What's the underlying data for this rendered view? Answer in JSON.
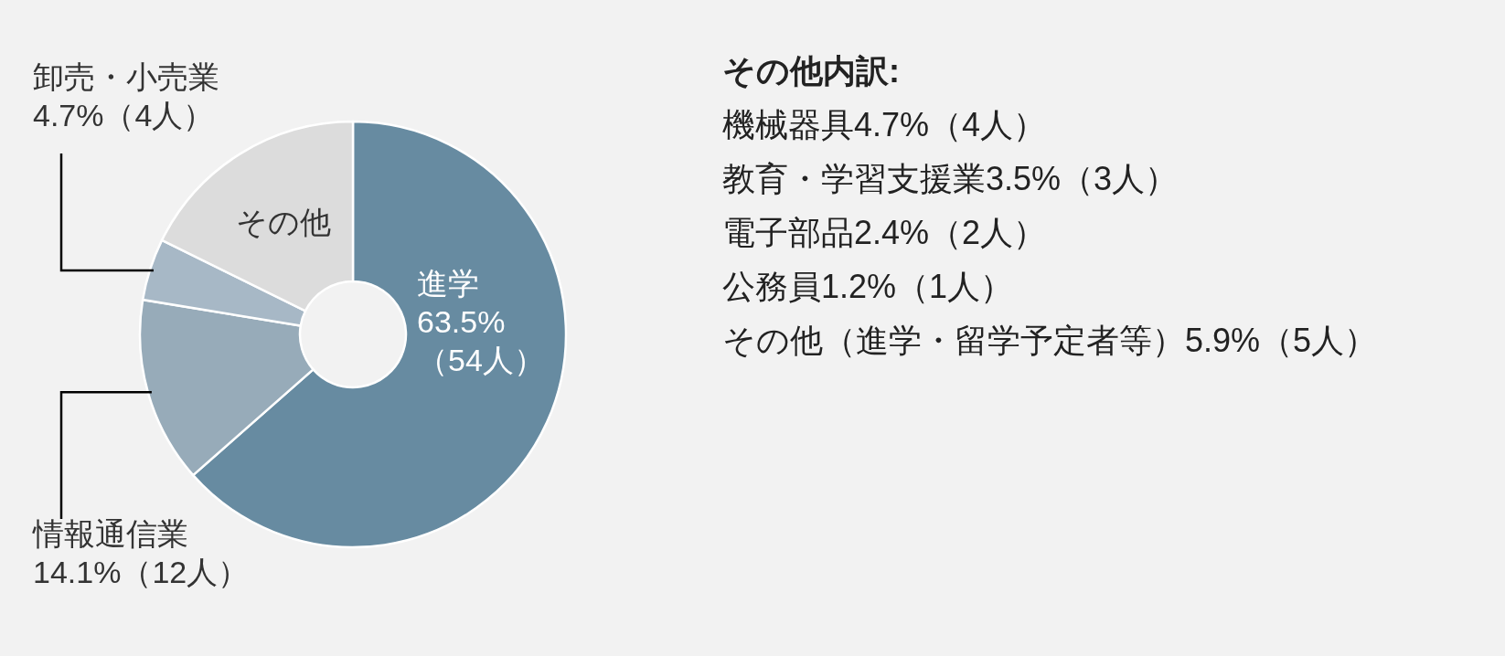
{
  "chart_data": {
    "type": "donut",
    "categories": [
      "進学",
      "情報通信業",
      "卸売・小売業",
      "その他"
    ],
    "values": [
      63.5,
      14.1,
      4.7,
      17.7
    ],
    "colors": [
      "#678ba1",
      "#97abb9",
      "#a7b8c6",
      "#dcdcdc"
    ],
    "value_labels": [
      "63.5%（54人）",
      "14.1%（12人）",
      "4.7%（4人）",
      null
    ],
    "annotations": [
      "その他内訳:",
      "機械器具4.7%（4人）",
      "教育・学習支援業3.5%（3人）",
      "電子部品2.4%（2人）",
      "公務員1.2%（1人）",
      "その他（進学・留学予定者等）5.9%（5人）"
    ]
  }
}
